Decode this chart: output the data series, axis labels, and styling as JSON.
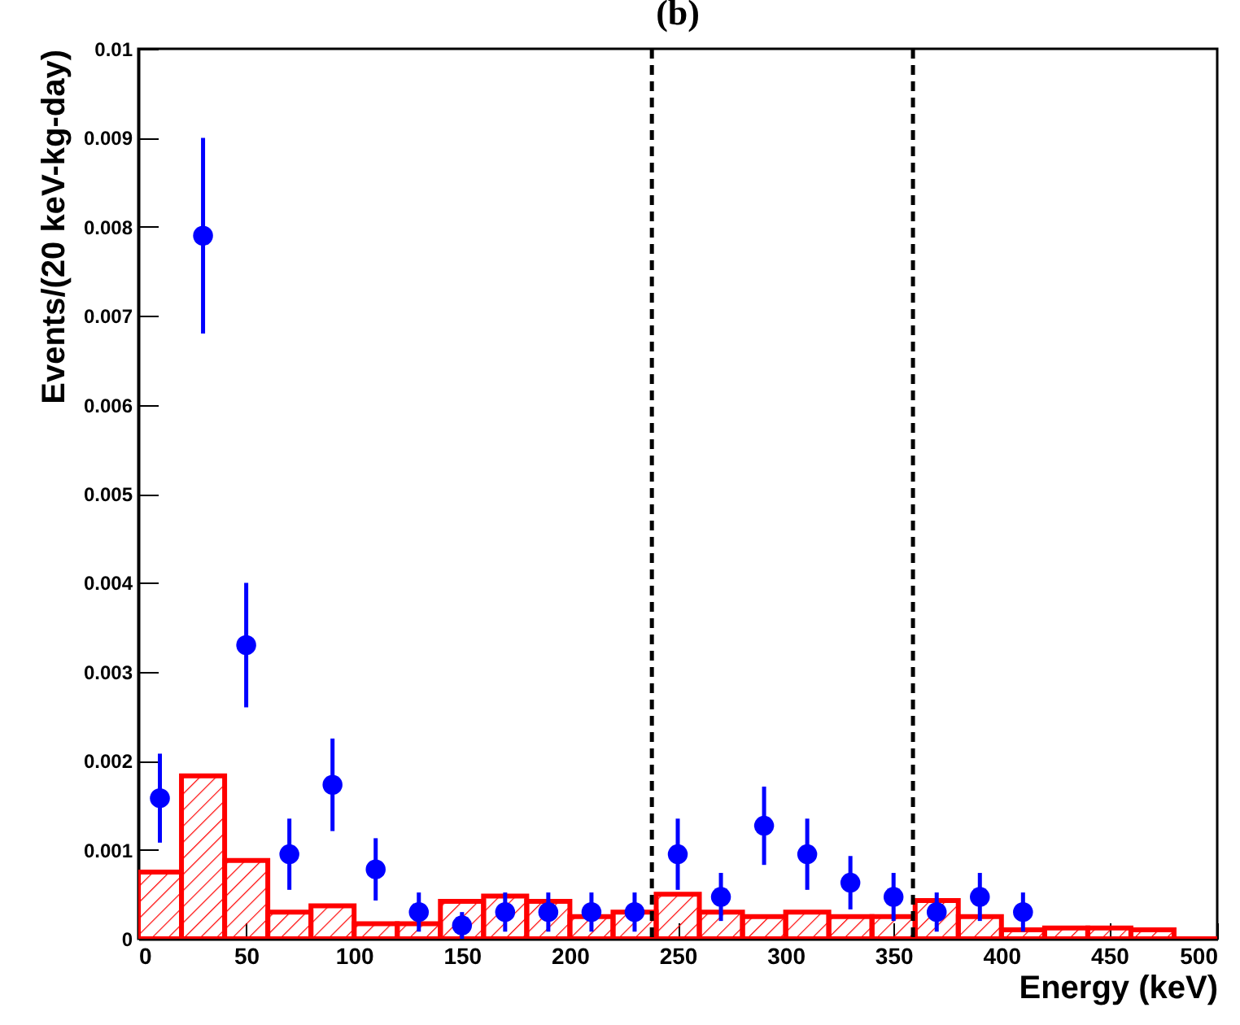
{
  "chart_data": {
    "type": "histogram",
    "title": "(b)",
    "xlabel": "Energy (keV)",
    "ylabel": "Events/(20 keV-kg-day)",
    "xlim": [
      0,
      500
    ],
    "xticks": [
      0,
      50,
      100,
      150,
      200,
      250,
      300,
      350,
      400,
      450,
      500
    ],
    "ylim": [
      0,
      0.01
    ],
    "yticks": [
      {
        "value": 0,
        "label": "0"
      },
      0.001,
      0.002,
      0.003,
      0.004,
      0.005,
      0.006,
      0.007,
      0.008,
      0.009,
      {
        "value": 0.01,
        "label": "0.01"
      }
    ],
    "grid": false,
    "marker": "circle",
    "ref_lines": [
      {
        "axis": "x",
        "value": 238,
        "line_style": "dashed",
        "color": "#000000"
      },
      {
        "axis": "x",
        "value": 359,
        "line_style": "dashed",
        "color": "#000000"
      }
    ],
    "series": [
      {
        "color": "#ff0000",
        "bins": [
          0,
          20,
          40,
          60,
          80,
          100,
          120,
          140,
          160,
          180,
          200,
          220,
          240,
          260,
          280,
          300,
          320,
          340,
          360,
          380,
          400,
          420,
          440,
          460,
          480,
          500
        ],
        "values": [
          0.00075,
          0.00183,
          0.00088,
          0.0003,
          0.00037,
          0.00017,
          0.00017,
          0.00042,
          0.00048,
          0.00042,
          0.00025,
          0.0003,
          0.0005,
          0.0003,
          0.00025,
          0.0003,
          0.00025,
          0.00025,
          0.00043,
          0.00025,
          0.0001,
          0.00012,
          0.00012,
          0.0001,
          0
        ]
      },
      {
        "type": "scatter",
        "color": "#0000ff",
        "x": [
          10,
          30,
          50,
          70,
          90,
          110,
          130,
          150,
          170,
          190,
          210,
          230,
          250,
          270,
          290,
          310,
          330,
          350,
          370,
          390,
          410
        ],
        "values": [
          0.00158,
          0.0079,
          0.0033,
          0.00095,
          0.00173,
          0.00078,
          0.0003,
          0.00015,
          0.0003,
          0.0003,
          0.0003,
          0.0003,
          0.00095,
          0.00047,
          0.00127,
          0.00095,
          0.00063,
          0.00047,
          0.0003,
          0.00047,
          0.0003
        ],
        "errors": [
          0.0005,
          0.0011,
          0.0007,
          0.0004,
          0.00052,
          0.00035,
          0.00022,
          0.00015,
          0.00022,
          0.00022,
          0.00022,
          0.00022,
          0.0004,
          0.00027,
          0.00044,
          0.0004,
          0.0003,
          0.00027,
          0.00022,
          0.00027,
          0.00022
        ]
      }
    ]
  }
}
